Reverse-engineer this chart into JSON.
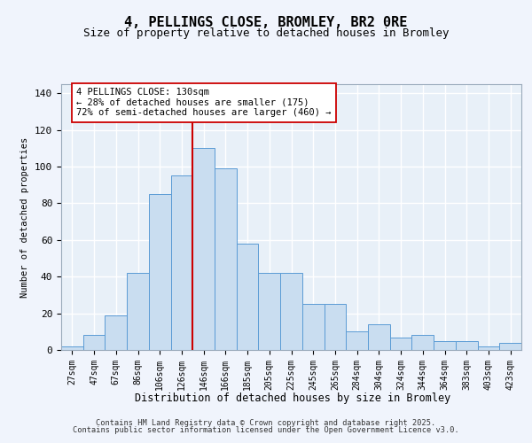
{
  "title_line1": "4, PELLINGS CLOSE, BROMLEY, BR2 0RE",
  "title_line2": "Size of property relative to detached houses in Bromley",
  "xlabel": "Distribution of detached houses by size in Bromley",
  "ylabel": "Number of detached properties",
  "bar_labels": [
    "27sqm",
    "47sqm",
    "67sqm",
    "86sqm",
    "106sqm",
    "126sqm",
    "146sqm",
    "166sqm",
    "185sqm",
    "205sqm",
    "225sqm",
    "245sqm",
    "265sqm",
    "284sqm",
    "304sqm",
    "324sqm",
    "344sqm",
    "364sqm",
    "383sqm",
    "403sqm",
    "423sqm"
  ],
  "bar_values": [
    2,
    8,
    19,
    42,
    85,
    95,
    110,
    99,
    58,
    42,
    42,
    25,
    25,
    10,
    14,
    7,
    8,
    5,
    5,
    2,
    4
  ],
  "bar_color": "#c9ddf0",
  "bar_edge_color": "#5b9bd5",
  "background_color": "#e8f0f8",
  "grid_color": "#ffffff",
  "vline_x": 5.5,
  "vline_color": "#cc0000",
  "annotation_text": "4 PELLINGS CLOSE: 130sqm\n← 28% of detached houses are smaller (175)\n72% of semi-detached houses are larger (460) →",
  "annotation_box_facecolor": "#ffffff",
  "annotation_box_edgecolor": "#cc0000",
  "ylim": [
    0,
    145
  ],
  "yticks": [
    0,
    20,
    40,
    60,
    80,
    100,
    120,
    140
  ],
  "footer_line1": "Contains HM Land Registry data © Crown copyright and database right 2025.",
  "footer_line2": "Contains public sector information licensed under the Open Government Licence v3.0.",
  "fig_facecolor": "#f0f4fc"
}
